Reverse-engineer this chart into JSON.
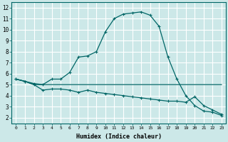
{
  "xlabel": "Humidex (Indice chaleur)",
  "background_color": "#cce8e8",
  "grid_color": "#ffffff",
  "line_color": "#006666",
  "xlim": [
    -0.5,
    23.5
  ],
  "ylim": [
    1.5,
    12.5
  ],
  "xticks": [
    0,
    1,
    2,
    3,
    4,
    5,
    6,
    7,
    8,
    9,
    10,
    11,
    12,
    13,
    14,
    15,
    16,
    17,
    18,
    19,
    20,
    21,
    22,
    23
  ],
  "yticks": [
    2,
    3,
    4,
    5,
    6,
    7,
    8,
    9,
    10,
    11,
    12
  ],
  "series1_x": [
    0,
    1,
    2,
    3,
    4,
    5,
    6,
    7,
    8,
    9,
    10,
    11,
    12,
    13,
    14,
    15,
    16,
    17,
    18,
    19,
    20,
    21,
    22,
    23
  ],
  "series1_y": [
    5.5,
    5.3,
    5.1,
    5.0,
    5.5,
    5.5,
    6.1,
    7.5,
    7.6,
    8.0,
    9.8,
    11.0,
    11.4,
    11.5,
    11.6,
    11.3,
    10.3,
    7.5,
    5.5,
    4.0,
    3.1,
    2.6,
    2.5,
    2.2
  ],
  "series2_x": [
    0,
    1,
    2,
    3,
    4,
    5,
    6,
    7,
    8,
    9,
    10,
    11,
    12,
    13,
    14,
    15,
    16,
    17,
    18,
    19,
    20,
    21,
    22,
    23
  ],
  "series2_y": [
    5.5,
    5.3,
    5.0,
    4.5,
    4.6,
    4.6,
    4.5,
    4.3,
    4.5,
    4.3,
    4.2,
    4.1,
    4.0,
    3.9,
    3.8,
    3.7,
    3.6,
    3.5,
    3.5,
    3.4,
    3.9,
    3.1,
    2.7,
    2.3
  ],
  "series3_x": [
    0,
    1,
    2,
    3,
    4,
    5,
    6,
    7,
    8,
    9,
    10,
    11,
    12,
    13,
    14,
    15,
    16,
    17,
    18,
    19,
    20,
    21,
    22,
    23
  ],
  "series3_y": [
    5.5,
    5.3,
    5.0,
    5.0,
    5.0,
    5.0,
    5.0,
    5.0,
    5.0,
    5.0,
    5.0,
    5.0,
    5.0,
    5.0,
    5.0,
    5.0,
    5.0,
    5.0,
    5.0,
    5.0,
    5.0,
    5.0,
    5.0,
    5.0
  ]
}
